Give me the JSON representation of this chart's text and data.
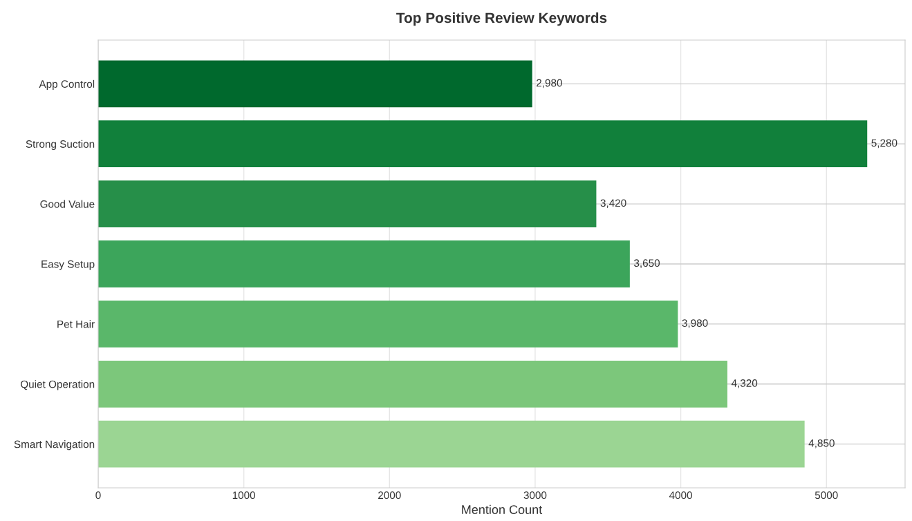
{
  "chart_data": {
    "type": "bar",
    "orientation": "horizontal",
    "title": "Top Positive Review Keywords",
    "xlabel": "Mention Count",
    "categories": [
      "App Control",
      "Strong Suction",
      "Good Value",
      "Easy Setup",
      "Pet Hair",
      "Quiet Operation",
      "Smart Navigation"
    ],
    "values": [
      2980,
      5280,
      3420,
      3650,
      3980,
      4320,
      4850
    ],
    "value_labels": [
      "2,980",
      "5,280",
      "3,420",
      "3,650",
      "3,980",
      "4,320",
      "4,850"
    ],
    "colors": [
      "#00692d",
      "#11803b",
      "#268f49",
      "#3ca55b",
      "#5ab76a",
      "#7cc77b",
      "#9bd593"
    ],
    "xlim": [
      0,
      5540
    ],
    "xticks": [
      0,
      1000,
      2000,
      3000,
      4000,
      5000
    ],
    "grid": true
  }
}
